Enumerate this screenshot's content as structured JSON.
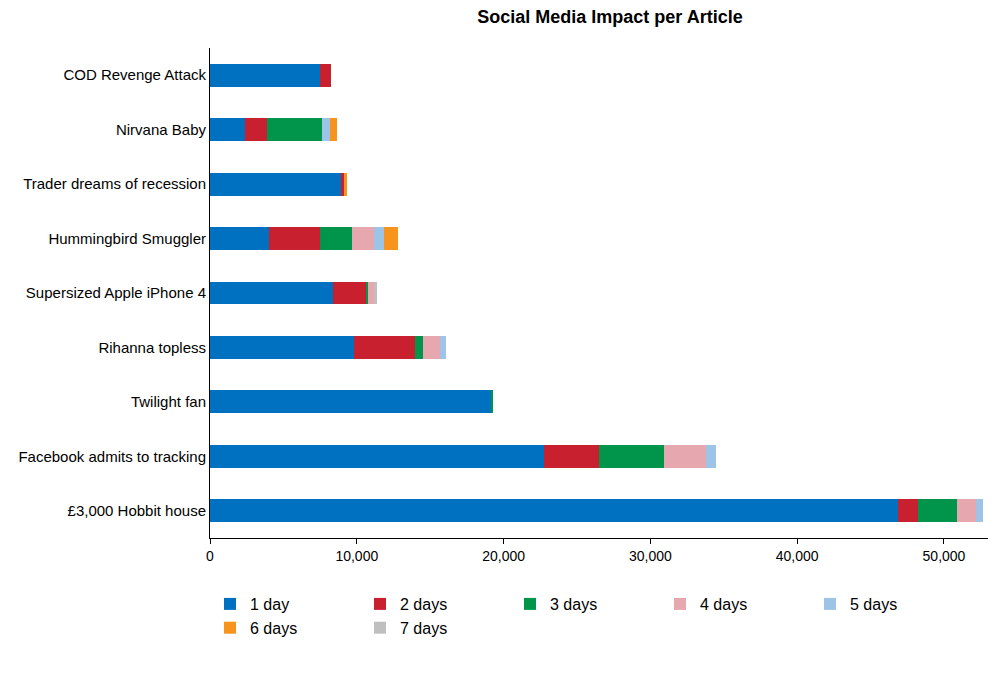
{
  "chart_data": {
    "type": "bar",
    "title": "Social Media Impact per Article",
    "orientation": "horizontal",
    "stacked": true,
    "grid": false,
    "legend": "bottom",
    "categories": [
      "COD Revenge Attack",
      "Nirvana Baby",
      "Trader dreams of recession",
      "Hummingbird Smuggler",
      "Supersized Apple iPhone 4",
      "Rihanna topless",
      "Twilight fan",
      "Facebook admits to tracking",
      "£3,000 Hobbit house"
    ],
    "series": [
      {
        "name": "1 day",
        "color": "#0070c0",
        "values": [
          7500,
          2360,
          8900,
          4000,
          8350,
          9800,
          19150,
          22750,
          46850
        ]
      },
      {
        "name": "2 days",
        "color": "#c8202f",
        "values": [
          750,
          1550,
          250,
          3500,
          2250,
          4150,
          0,
          3750,
          1400
        ]
      },
      {
        "name": "3 days",
        "color": "#00954a",
        "values": [
          0,
          3700,
          0,
          2200,
          150,
          550,
          150,
          4450,
          2650
        ]
      },
      {
        "name": "4 days",
        "color": "#e6a8ae",
        "values": [
          0,
          0,
          0,
          1450,
          400,
          1200,
          0,
          2850,
          1250
        ]
      },
      {
        "name": "5 days",
        "color": "#9dc3e6",
        "values": [
          0,
          550,
          0,
          700,
          0,
          400,
          0,
          700,
          500
        ]
      },
      {
        "name": "6 days",
        "color": "#f7941d",
        "values": [
          0,
          500,
          200,
          950,
          0,
          0,
          0,
          0,
          0
        ]
      },
      {
        "name": "7 days",
        "color": "#bfbfbf",
        "values": [
          0,
          0,
          0,
          0,
          200,
          0,
          0,
          0,
          0
        ]
      }
    ],
    "xlim": [
      0,
      53000
    ],
    "xticks": [
      0,
      {
        "value": 10000,
        "label": "10,000"
      },
      {
        "value": 20000,
        "label": "20,000"
      },
      {
        "value": 30000,
        "label": "30,000"
      },
      {
        "value": 40000,
        "label": "40,000"
      },
      {
        "value": 50000,
        "label": "50,000"
      }
    ]
  }
}
